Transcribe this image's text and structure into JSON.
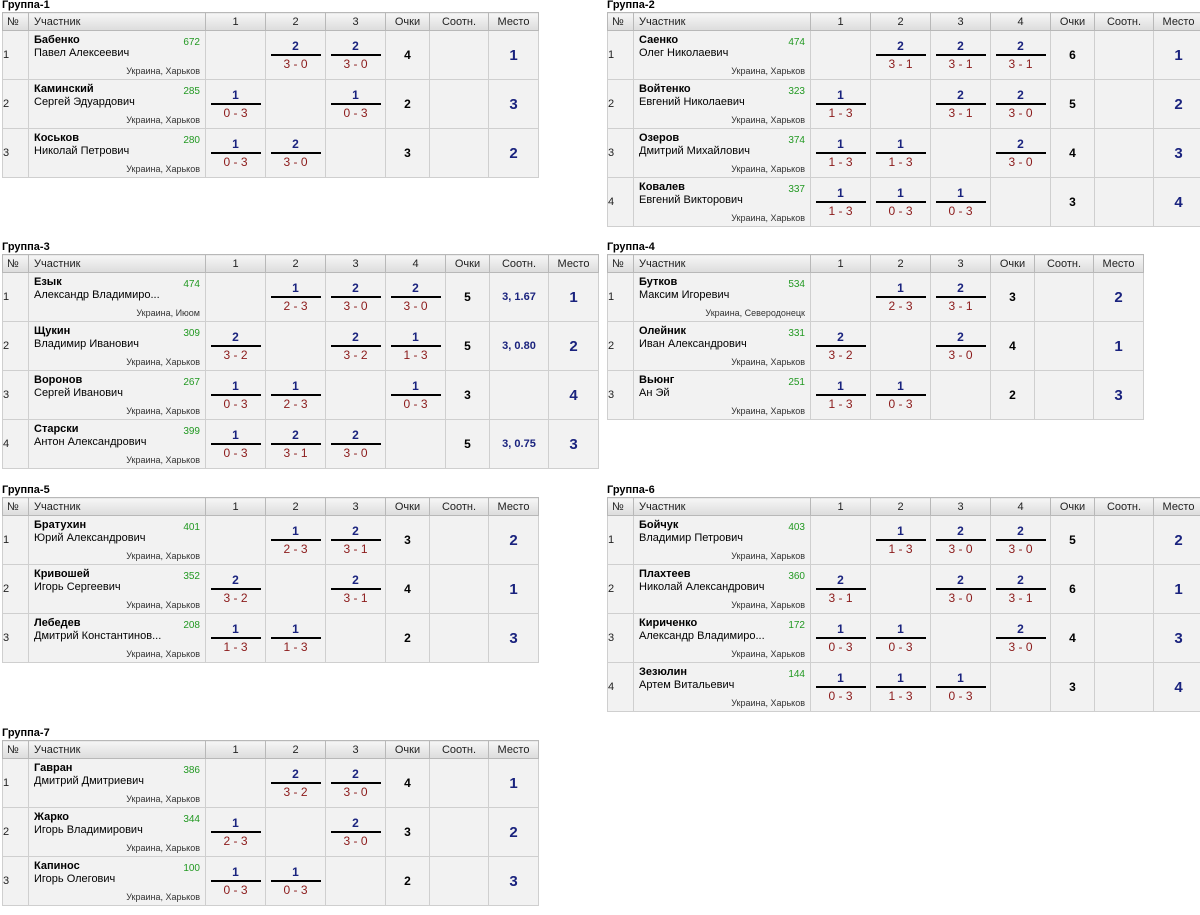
{
  "headers": {
    "num": "№",
    "player": "Участник",
    "points": "Очки",
    "ratio": "Соотн.",
    "place": "Место"
  },
  "groups": [
    {
      "title": "Группа-1",
      "players": [
        {
          "num": "1",
          "name": "Бабенко",
          "first": "Павел Алексеевич",
          "rating": "672",
          "city": "Украина, Харьков",
          "cells": [
            null,
            {
              "score": "2",
              "games": "3 - 0"
            },
            {
              "score": "2",
              "games": "3 - 0"
            }
          ],
          "points": "4",
          "ratio": "",
          "place": "1"
        },
        {
          "num": "2",
          "name": "Каминский",
          "first": "Сергей Эдуардович",
          "rating": "285",
          "city": "Украина, Харьков",
          "cells": [
            {
              "score": "1",
              "games": "0 - 3"
            },
            null,
            {
              "score": "1",
              "games": "0 - 3"
            }
          ],
          "points": "2",
          "ratio": "",
          "place": "3"
        },
        {
          "num": "3",
          "name": "Коськов",
          "first": "Николай Петрович",
          "rating": "280",
          "city": "Украина, Харьков",
          "cells": [
            {
              "score": "1",
              "games": "0 - 3"
            },
            {
              "score": "2",
              "games": "3 - 0"
            },
            null
          ],
          "points": "3",
          "ratio": "",
          "place": "2"
        }
      ]
    },
    {
      "title": "Группа-2",
      "players": [
        {
          "num": "1",
          "name": "Саенко",
          "first": "Олег Николаевич",
          "rating": "474",
          "city": "Украина, Харьков",
          "cells": [
            null,
            {
              "score": "2",
              "games": "3 - 1"
            },
            {
              "score": "2",
              "games": "3 - 1"
            },
            {
              "score": "2",
              "games": "3 - 1"
            }
          ],
          "points": "6",
          "ratio": "",
          "place": "1"
        },
        {
          "num": "2",
          "name": "Войтенко",
          "first": "Евгений Николаевич",
          "rating": "323",
          "city": "Украина, Харьков",
          "cells": [
            {
              "score": "1",
              "games": "1 - 3"
            },
            null,
            {
              "score": "2",
              "games": "3 - 1"
            },
            {
              "score": "2",
              "games": "3 - 0"
            }
          ],
          "points": "5",
          "ratio": "",
          "place": "2"
        },
        {
          "num": "3",
          "name": "Озеров",
          "first": "Дмитрий Михайлович",
          "rating": "374",
          "city": "Украина, Харьков",
          "cells": [
            {
              "score": "1",
              "games": "1 - 3"
            },
            {
              "score": "1",
              "games": "1 - 3"
            },
            null,
            {
              "score": "2",
              "games": "3 - 0"
            }
          ],
          "points": "4",
          "ratio": "",
          "place": "3"
        },
        {
          "num": "4",
          "name": "Ковалев",
          "first": "Евгений Викторович",
          "rating": "337",
          "city": "Украина, Харьков",
          "cells": [
            {
              "score": "1",
              "games": "1 - 3"
            },
            {
              "score": "1",
              "games": "0 - 3"
            },
            {
              "score": "1",
              "games": "0 - 3"
            },
            null
          ],
          "points": "3",
          "ratio": "",
          "place": "4"
        }
      ]
    },
    {
      "title": "Группа-3",
      "players": [
        {
          "num": "1",
          "name": "Езык",
          "first": "Александр Владимиро...",
          "rating": "474",
          "city": "Украина, Июом",
          "cells": [
            null,
            {
              "score": "1",
              "games": "2 - 3"
            },
            {
              "score": "2",
              "games": "3 - 0"
            },
            {
              "score": "2",
              "games": "3 - 0"
            }
          ],
          "points": "5",
          "ratio": "3, 1.67",
          "place": "1"
        },
        {
          "num": "2",
          "name": "Щукин",
          "first": "Владимир Иванович",
          "rating": "309",
          "city": "Украина, Харьков",
          "cells": [
            {
              "score": "2",
              "games": "3 - 2"
            },
            null,
            {
              "score": "2",
              "games": "3 - 2"
            },
            {
              "score": "1",
              "games": "1 - 3"
            }
          ],
          "points": "5",
          "ratio": "3, 0.80",
          "place": "2"
        },
        {
          "num": "3",
          "name": "Воронов",
          "first": "Сергей Иванович",
          "rating": "267",
          "city": "Украина, Харьков",
          "cells": [
            {
              "score": "1",
              "games": "0 - 3"
            },
            {
              "score": "1",
              "games": "2 - 3"
            },
            null,
            {
              "score": "1",
              "games": "0 - 3"
            }
          ],
          "points": "3",
          "ratio": "",
          "place": "4"
        },
        {
          "num": "4",
          "name": "Старски",
          "first": "Антон Александрович",
          "rating": "399",
          "city": "Украина, Харьков",
          "cells": [
            {
              "score": "1",
              "games": "0 - 3"
            },
            {
              "score": "2",
              "games": "3 - 1"
            },
            {
              "score": "2",
              "games": "3 - 0"
            },
            null
          ],
          "points": "5",
          "ratio": "3, 0.75",
          "place": "3"
        }
      ]
    },
    {
      "title": "Группа-4",
      "players": [
        {
          "num": "1",
          "name": "Бутков",
          "first": "Максим Игоревич",
          "rating": "534",
          "city": "Украина, Северодонецк",
          "cells": [
            null,
            {
              "score": "1",
              "games": "2 - 3"
            },
            {
              "score": "2",
              "games": "3 - 1"
            }
          ],
          "points": "3",
          "ratio": "",
          "place": "2"
        },
        {
          "num": "2",
          "name": "Олейник",
          "first": "Иван Александрович",
          "rating": "331",
          "city": "Украина, Харьков",
          "cells": [
            {
              "score": "2",
              "games": "3 - 2"
            },
            null,
            {
              "score": "2",
              "games": "3 - 0"
            }
          ],
          "points": "4",
          "ratio": "",
          "place": "1"
        },
        {
          "num": "3",
          "name": "Вьюнг",
          "first": "Ан Эй",
          "rating": "251",
          "city": "Украина, Харьков",
          "cells": [
            {
              "score": "1",
              "games": "1 - 3"
            },
            {
              "score": "1",
              "games": "0 - 3"
            },
            null
          ],
          "points": "2",
          "ratio": "",
          "place": "3"
        }
      ]
    },
    {
      "title": "Группа-5",
      "players": [
        {
          "num": "1",
          "name": "Братухин",
          "first": "Юрий Александрович",
          "rating": "401",
          "city": "Украина, Харьков",
          "cells": [
            null,
            {
              "score": "1",
              "games": "2 - 3"
            },
            {
              "score": "2",
              "games": "3 - 1"
            }
          ],
          "points": "3",
          "ratio": "",
          "place": "2"
        },
        {
          "num": "2",
          "name": "Кривошей",
          "first": "Игорь Сергеевич",
          "rating": "352",
          "city": "Украина, Харьков",
          "cells": [
            {
              "score": "2",
              "games": "3 - 2"
            },
            null,
            {
              "score": "2",
              "games": "3 - 1"
            }
          ],
          "points": "4",
          "ratio": "",
          "place": "1"
        },
        {
          "num": "3",
          "name": "Лебедев",
          "first": "Дмитрий Константинов...",
          "rating": "208",
          "city": "Украина, Харьков",
          "cells": [
            {
              "score": "1",
              "games": "1 - 3"
            },
            {
              "score": "1",
              "games": "1 - 3"
            },
            null
          ],
          "points": "2",
          "ratio": "",
          "place": "3"
        }
      ]
    },
    {
      "title": "Группа-6",
      "players": [
        {
          "num": "1",
          "name": "Бойчук",
          "first": "Владимир Петрович",
          "rating": "403",
          "city": "Украина, Харьков",
          "cells": [
            null,
            {
              "score": "1",
              "games": "1 - 3"
            },
            {
              "score": "2",
              "games": "3 - 0"
            },
            {
              "score": "2",
              "games": "3 - 0"
            }
          ],
          "points": "5",
          "ratio": "",
          "place": "2"
        },
        {
          "num": "2",
          "name": "Плахтеев",
          "first": "Николай Александрович",
          "rating": "360",
          "city": "Украина, Харьков",
          "cells": [
            {
              "score": "2",
              "games": "3 - 1"
            },
            null,
            {
              "score": "2",
              "games": "3 - 0"
            },
            {
              "score": "2",
              "games": "3 - 1"
            }
          ],
          "points": "6",
          "ratio": "",
          "place": "1"
        },
        {
          "num": "3",
          "name": "Кириченко",
          "first": "Александр Владимиро...",
          "rating": "172",
          "city": "Украина, Харьков",
          "cells": [
            {
              "score": "1",
              "games": "0 - 3"
            },
            {
              "score": "1",
              "games": "0 - 3"
            },
            null,
            {
              "score": "2",
              "games": "3 - 0"
            }
          ],
          "points": "4",
          "ratio": "",
          "place": "3"
        },
        {
          "num": "4",
          "name": "Зезюлин",
          "first": "Артем Витальевич",
          "rating": "144",
          "city": "Украина, Харьков",
          "cells": [
            {
              "score": "1",
              "games": "0 - 3"
            },
            {
              "score": "1",
              "games": "1 - 3"
            },
            {
              "score": "1",
              "games": "0 - 3"
            },
            null
          ],
          "points": "3",
          "ratio": "",
          "place": "4"
        }
      ]
    },
    {
      "title": "Группа-7",
      "players": [
        {
          "num": "1",
          "name": "Гавран",
          "first": "Дмитрий Дмитриевич",
          "rating": "386",
          "city": "Украина, Харьков",
          "cells": [
            null,
            {
              "score": "2",
              "games": "3 - 2"
            },
            {
              "score": "2",
              "games": "3 - 0"
            }
          ],
          "points": "4",
          "ratio": "",
          "place": "1"
        },
        {
          "num": "2",
          "name": "Жарко",
          "first": "Игорь Владимирович",
          "rating": "344",
          "city": "Украина, Харьков",
          "cells": [
            {
              "score": "1",
              "games": "2 - 3"
            },
            null,
            {
              "score": "2",
              "games": "3 - 0"
            }
          ],
          "points": "3",
          "ratio": "",
          "place": "2"
        },
        {
          "num": "3",
          "name": "Капинос",
          "first": "Игорь Олегович",
          "rating": "100",
          "city": "Украина, Харьков",
          "cells": [
            {
              "score": "1",
              "games": "0 - 3"
            },
            {
              "score": "1",
              "games": "0 - 3"
            },
            null
          ],
          "points": "2",
          "ratio": "",
          "place": "3"
        }
      ]
    }
  ]
}
